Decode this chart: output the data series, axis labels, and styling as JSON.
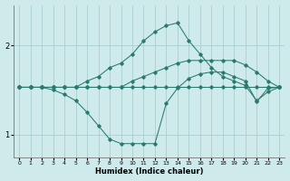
{
  "xlabel": "Humidex (Indice chaleur)",
  "bg_color": "#ceeaea",
  "line_color": "#2a7a6f",
  "grid_color": "#aacfcf",
  "xlim": [
    -0.5,
    23.5
  ],
  "ylim": [
    0.75,
    2.45
  ],
  "yticks": [
    1,
    2
  ],
  "xticks": [
    0,
    1,
    2,
    3,
    4,
    5,
    6,
    7,
    8,
    9,
    10,
    11,
    12,
    13,
    14,
    15,
    16,
    17,
    18,
    19,
    20,
    21,
    22,
    23
  ],
  "line_flat_x": [
    0,
    1,
    2,
    3,
    4,
    5,
    6,
    7,
    8,
    9,
    10,
    11,
    12,
    13,
    14,
    15,
    16,
    17,
    18,
    19,
    20,
    21,
    22,
    23
  ],
  "line_flat_y": [
    1.53,
    1.53,
    1.53,
    1.53,
    1.53,
    1.53,
    1.53,
    1.53,
    1.53,
    1.53,
    1.53,
    1.53,
    1.53,
    1.53,
    1.53,
    1.53,
    1.53,
    1.53,
    1.53,
    1.53,
    1.53,
    1.53,
    1.53,
    1.53
  ],
  "line_rise_x": [
    0,
    1,
    2,
    3,
    4,
    5,
    6,
    7,
    8,
    9,
    10,
    11,
    12,
    13,
    14,
    15,
    16,
    17,
    18,
    19,
    20,
    21,
    22,
    23
  ],
  "line_rise_y": [
    1.53,
    1.53,
    1.53,
    1.53,
    1.53,
    1.53,
    1.53,
    1.53,
    1.53,
    1.53,
    1.6,
    1.65,
    1.7,
    1.75,
    1.8,
    1.83,
    1.83,
    1.83,
    1.83,
    1.83,
    1.78,
    1.7,
    1.6,
    1.53
  ],
  "line_dip_x": [
    0,
    1,
    2,
    3,
    4,
    5,
    6,
    7,
    8,
    9,
    10,
    11,
    12,
    13,
    14,
    15,
    16,
    17,
    18,
    19,
    20,
    21,
    22,
    23
  ],
  "line_dip_y": [
    1.53,
    1.53,
    1.53,
    1.5,
    1.45,
    1.38,
    1.25,
    1.1,
    0.95,
    0.9,
    0.9,
    0.9,
    0.9,
    1.35,
    1.52,
    1.63,
    1.68,
    1.7,
    1.7,
    1.65,
    1.6,
    1.37,
    1.52,
    1.53
  ],
  "line_peak_x": [
    0,
    1,
    2,
    3,
    4,
    5,
    6,
    7,
    8,
    9,
    10,
    11,
    12,
    13,
    14,
    15,
    16,
    17,
    18,
    19,
    20,
    21,
    22,
    23
  ],
  "line_peak_y": [
    1.53,
    1.53,
    1.53,
    1.53,
    1.53,
    1.53,
    1.6,
    1.65,
    1.75,
    1.8,
    1.9,
    2.05,
    2.15,
    2.22,
    2.25,
    2.05,
    1.9,
    1.75,
    1.65,
    1.6,
    1.55,
    1.38,
    1.48,
    1.53
  ]
}
